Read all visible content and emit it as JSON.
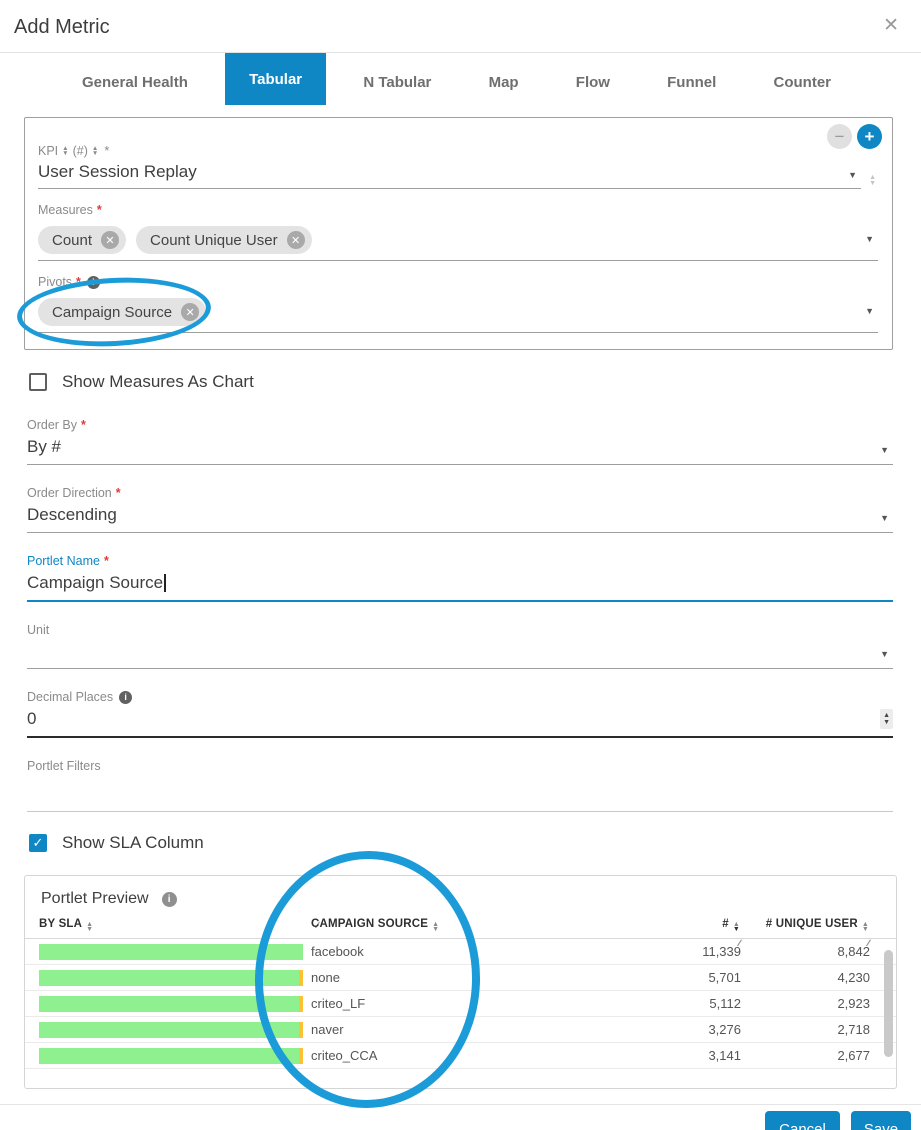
{
  "modal": {
    "title": "Add Metric"
  },
  "icons": {
    "close": "✕",
    "info": "i",
    "plus": "+",
    "minus": "−",
    "caret": "▼",
    "sort_up": "▲",
    "sort_down": "▼",
    "resize": "∕∕",
    "check": "✓",
    "chip_remove": "✕"
  },
  "tabs": [
    {
      "label": "General Health",
      "active": false
    },
    {
      "label": "Tabular",
      "active": true
    },
    {
      "label": "N Tabular",
      "active": false
    },
    {
      "label": "Map",
      "active": false
    },
    {
      "label": "Flow",
      "active": false
    },
    {
      "label": "Funnel",
      "active": false
    },
    {
      "label": "Counter",
      "active": false
    }
  ],
  "kpi_card": {
    "kpi_label": "KPI",
    "kpi_label_suffix": "(#)",
    "kpi_required": "*",
    "kpi_value": "User Session Replay",
    "measures_label": "Measures",
    "measures_required": "*",
    "measures_chips": [
      "Count",
      "Count Unique User"
    ],
    "pivots_label": "Pivots",
    "pivots_required": "*",
    "pivots_chips": [
      "Campaign Source"
    ]
  },
  "form": {
    "show_measures_as_chart": {
      "label": "Show Measures As Chart",
      "checked": false
    },
    "order_by": {
      "label": "Order By",
      "required": "*",
      "value": "By #"
    },
    "order_direction": {
      "label": "Order Direction",
      "required": "*",
      "value": "Descending"
    },
    "portlet_name": {
      "label": "Portlet Name",
      "required": "*",
      "value": "Campaign Source"
    },
    "unit": {
      "label": "Unit",
      "value": ""
    },
    "decimal_places": {
      "label": "Decimal Places",
      "value": "0"
    },
    "portlet_filters": {
      "label": "Portlet Filters",
      "value": ""
    },
    "show_sla_column": {
      "label": "Show SLA Column",
      "checked": true
    }
  },
  "preview": {
    "title": "Portlet Preview",
    "columns": [
      {
        "label": "BY SLA",
        "sort": "none"
      },
      {
        "label": "CAMPAIGN SOURCE",
        "sort": "none"
      },
      {
        "label": "#",
        "sort": "desc"
      },
      {
        "label": "# UNIQUE USER",
        "sort": "none"
      }
    ],
    "rows": [
      {
        "campaign_source": "facebook",
        "count": "11,339",
        "unique_user": "8,842",
        "sla": {
          "green_pct": 100,
          "yellow_pct": 0
        }
      },
      {
        "campaign_source": "none",
        "count": "5,701",
        "unique_user": "4,230",
        "sla": {
          "green_pct": 98.5,
          "yellow_pct": 1.5
        }
      },
      {
        "campaign_source": "criteo_LF",
        "count": "5,112",
        "unique_user": "2,923",
        "sla": {
          "green_pct": 98.5,
          "yellow_pct": 1.5
        }
      },
      {
        "campaign_source": "naver",
        "count": "3,276",
        "unique_user": "2,718",
        "sla": {
          "green_pct": 98.5,
          "yellow_pct": 1.5
        }
      },
      {
        "campaign_source": "criteo_CCA",
        "count": "3,141",
        "unique_user": "2,677",
        "sla": {
          "green_pct": 98.5,
          "yellow_pct": 1.5
        }
      }
    ]
  },
  "footer": {
    "cancel": "Cancel",
    "save": "Save"
  },
  "colors": {
    "accent": "#0f87c5",
    "annotation": "#1b9cd8",
    "sla_green": "#8ff08f",
    "sla_yellow": "#fdc233"
  }
}
